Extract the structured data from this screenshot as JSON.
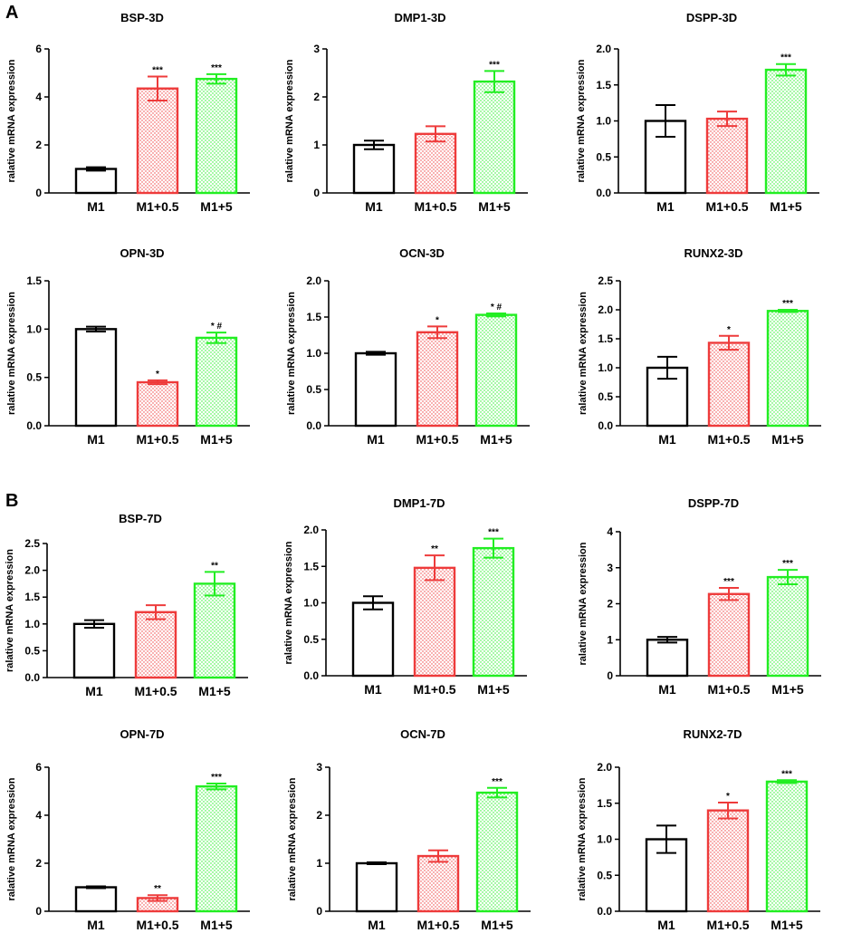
{
  "panel_labels": [
    "A",
    "B"
  ],
  "colors": {
    "M1": "#000000",
    "M1+0.5": "#ee3b3b",
    "M1+5": "#22ee22"
  },
  "chart_data": [
    {
      "type": "bar",
      "panel": "A",
      "title": "BSP-3D",
      "ylabel": "ralative mRNA expression",
      "categories": [
        "M1",
        "M1+0.5",
        "M1+5"
      ],
      "values": [
        1.0,
        4.35,
        4.75
      ],
      "errors": [
        0.07,
        0.5,
        0.2
      ],
      "ylim": [
        0,
        6
      ],
      "yticks": [
        "0",
        "2",
        "4",
        "6"
      ],
      "annotations": [
        "",
        "***",
        "***"
      ]
    },
    {
      "type": "bar",
      "panel": "A",
      "title": "DMP1-3D",
      "ylabel": "ralative mRNA expression",
      "categories": [
        "M1",
        "M1+0.5",
        "M1+5"
      ],
      "values": [
        1.0,
        1.23,
        2.32
      ],
      "errors": [
        0.09,
        0.16,
        0.22
      ],
      "ylim": [
        0,
        3
      ],
      "yticks": [
        "0",
        "1",
        "2",
        "3"
      ],
      "annotations": [
        "",
        "",
        "***"
      ]
    },
    {
      "type": "bar",
      "panel": "A",
      "title": "DSPP-3D",
      "ylabel": "ralative mRNA expression",
      "categories": [
        "M1",
        "M1+0.5",
        "M1+5"
      ],
      "values": [
        1.0,
        1.03,
        1.71
      ],
      "errors": [
        0.22,
        0.1,
        0.08
      ],
      "ylim": [
        0,
        2.0
      ],
      "yticks": [
        "0.0",
        "0.5",
        "1.0",
        "1.5",
        "2.0"
      ],
      "annotations": [
        "",
        "",
        "***"
      ]
    },
    {
      "type": "bar",
      "panel": "A",
      "title": "OPN-3D",
      "ylabel": "ralative mRNA expression",
      "categories": [
        "M1",
        "M1+0.5",
        "M1+5"
      ],
      "values": [
        1.0,
        0.45,
        0.91
      ],
      "errors": [
        0.025,
        0.02,
        0.055
      ],
      "ylim": [
        0,
        1.5
      ],
      "yticks": [
        "0.0",
        "0.5",
        "1.0",
        "1.5"
      ],
      "annotations": [
        "",
        "*",
        "* #"
      ]
    },
    {
      "type": "bar",
      "panel": "A",
      "title": "OCN-3D",
      "ylabel": "ralative mRNA expression",
      "categories": [
        "M1",
        "M1+0.5",
        "M1+5"
      ],
      "values": [
        1.0,
        1.29,
        1.53
      ],
      "errors": [
        0.02,
        0.08,
        0.02
      ],
      "ylim": [
        0,
        2.0
      ],
      "yticks": [
        "0.0",
        "0.5",
        "1.0",
        "1.5",
        "2.0"
      ],
      "annotations": [
        "",
        "*",
        "* #"
      ]
    },
    {
      "type": "bar",
      "panel": "A",
      "title": "RUNX2-3D",
      "ylabel": "ralative mRNA expression",
      "categories": [
        "M1",
        "M1+0.5",
        "M1+5"
      ],
      "values": [
        1.0,
        1.43,
        1.98
      ],
      "errors": [
        0.19,
        0.12,
        0.02
      ],
      "ylim": [
        0,
        2.5
      ],
      "yticks": [
        "0.0",
        "0.5",
        "1.0",
        "1.5",
        "2.0",
        "2.5"
      ],
      "annotations": [
        "",
        "*",
        "***"
      ]
    },
    {
      "type": "bar",
      "panel": "B",
      "title": "BSP-7D",
      "ylabel": "ralative mRNA expression",
      "categories": [
        "M1",
        "M1+0.5",
        "M1+5"
      ],
      "values": [
        1.0,
        1.22,
        1.75
      ],
      "errors": [
        0.07,
        0.13,
        0.22
      ],
      "ylim": [
        0,
        2.5
      ],
      "yticks": [
        "0.0",
        "0.5",
        "1.0",
        "1.5",
        "2.0",
        "2.5"
      ],
      "annotations": [
        "",
        "",
        "**"
      ]
    },
    {
      "type": "bar",
      "panel": "B",
      "title": "DMP1-7D",
      "ylabel": "ralative mRNA expression",
      "categories": [
        "M1",
        "M1+0.5",
        "M1+5"
      ],
      "values": [
        1.0,
        1.48,
        1.75
      ],
      "errors": [
        0.09,
        0.17,
        0.13
      ],
      "ylim": [
        0,
        2.0
      ],
      "yticks": [
        "0.0",
        "0.5",
        "1.0",
        "1.5",
        "2.0"
      ],
      "annotations": [
        "",
        "**",
        "***"
      ]
    },
    {
      "type": "bar",
      "panel": "B",
      "title": "DSPP-7D",
      "ylabel": "ralative mRNA expression",
      "categories": [
        "M1",
        "M1+0.5",
        "M1+5"
      ],
      "values": [
        1.0,
        2.27,
        2.74
      ],
      "errors": [
        0.08,
        0.17,
        0.2
      ],
      "ylim": [
        0,
        4
      ],
      "yticks": [
        "0",
        "1",
        "2",
        "3",
        "4"
      ],
      "annotations": [
        "",
        "***",
        "***"
      ]
    },
    {
      "type": "bar",
      "panel": "B",
      "title": "OPN-7D",
      "ylabel": "ralative mRNA expression",
      "categories": [
        "M1",
        "M1+0.5",
        "M1+5"
      ],
      "values": [
        1.0,
        0.55,
        5.2
      ],
      "errors": [
        0.04,
        0.12,
        0.12
      ],
      "ylim": [
        0,
        6
      ],
      "yticks": [
        "0",
        "2",
        "4",
        "6"
      ],
      "annotations": [
        "",
        "**",
        "***"
      ]
    },
    {
      "type": "bar",
      "panel": "B",
      "title": "OCN-7D",
      "ylabel": "ralative mRNA expression",
      "categories": [
        "M1",
        "M1+0.5",
        "M1+5"
      ],
      "values": [
        1.0,
        1.15,
        2.47
      ],
      "errors": [
        0.02,
        0.12,
        0.1
      ],
      "ylim": [
        0,
        3
      ],
      "yticks": [
        "0",
        "1",
        "2",
        "3"
      ],
      "annotations": [
        "",
        "",
        "***"
      ]
    },
    {
      "type": "bar",
      "panel": "B",
      "title": "RUNX2-7D",
      "ylabel": "ralative mRNA expression",
      "categories": [
        "M1",
        "M1+0.5",
        "M1+5"
      ],
      "values": [
        1.0,
        1.4,
        1.8
      ],
      "errors": [
        0.19,
        0.11,
        0.02
      ],
      "ylim": [
        0,
        2.0
      ],
      "yticks": [
        "0.0",
        "0.5",
        "1.0",
        "1.5",
        "2.0"
      ],
      "annotations": [
        "",
        "*",
        "***"
      ]
    }
  ]
}
